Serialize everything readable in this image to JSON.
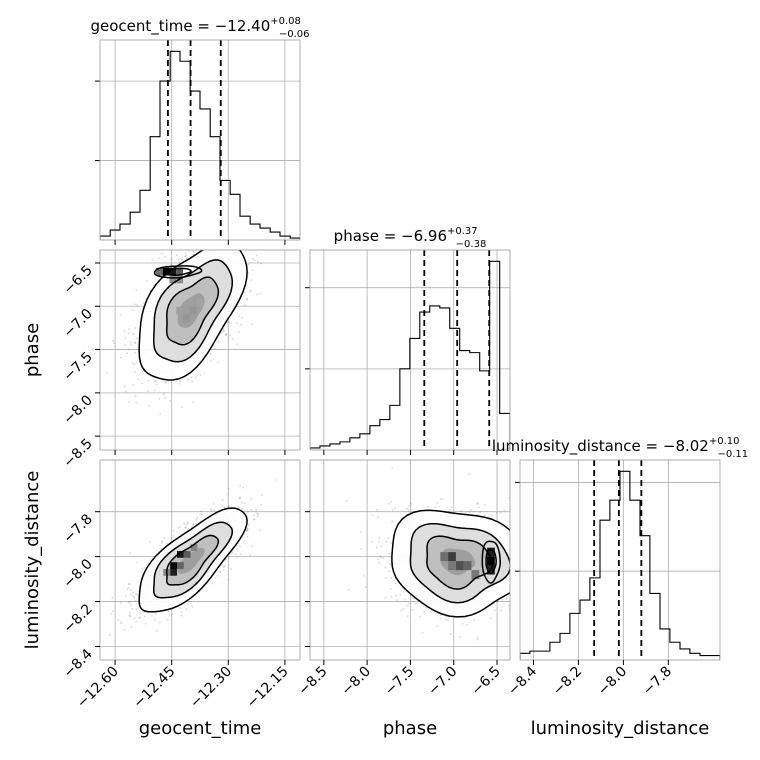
{
  "chart_data": {
    "type": "corner",
    "grid": true,
    "parameters": [
      "geocent_time",
      "phase",
      "luminosity_distance"
    ],
    "axis_labels": {
      "geocent_time": "geocent_time",
      "phase": "phase",
      "luminosity_distance": "luminosity_distance"
    },
    "ranges": {
      "geocent_time": [
        -12.64,
        -12.11
      ],
      "phase": [
        -8.66,
        -6.35
      ],
      "luminosity_distance": [
        -8.46,
        -7.57
      ]
    },
    "ticks": {
      "geocent_time": {
        "values": [
          -12.6,
          -12.45,
          -12.3,
          -12.15
        ],
        "labels": [
          "−12.60",
          "−12.45",
          "−12.30",
          "−12.15"
        ]
      },
      "phase": {
        "values": [
          -8.5,
          -8.0,
          -7.5,
          -7.0,
          -6.5
        ],
        "labels": [
          "−8.5",
          "−8.0",
          "−7.5",
          "−7.0",
          "−6.5"
        ]
      },
      "luminosity_distance": {
        "values": [
          -8.4,
          -8.2,
          -8.0,
          -7.8
        ],
        "labels": [
          "−8.4",
          "−8.2",
          "−8.0",
          "−7.8"
        ]
      }
    },
    "titles": {
      "geocent_time": {
        "main": "geocent_time = −12.40",
        "sup": "+0.08",
        "sub": "−0.06"
      },
      "phase": {
        "main": "phase = −6.96",
        "sup": "+0.37",
        "sub": "−0.38"
      },
      "luminosity_distance": {
        "main": "luminosity_distance = −8.02",
        "sup": "+0.10",
        "sub": "−0.11"
      }
    },
    "quantiles": {
      "geocent_time": [
        -12.46,
        -12.4,
        -12.32
      ],
      "phase": [
        -7.34,
        -6.96,
        -6.59
      ],
      "luminosity_distance": [
        -8.13,
        -8.02,
        -7.92
      ]
    },
    "histograms": {
      "geocent_time": {
        "edges": [
          -12.64,
          -12.613,
          -12.587,
          -12.56,
          -12.534,
          -12.507,
          -12.481,
          -12.454,
          -12.428,
          -12.401,
          -12.375,
          -12.348,
          -12.322,
          -12.295,
          -12.269,
          -12.242,
          -12.216,
          -12.189,
          -12.163,
          -12.136,
          -12.11
        ],
        "counts": [
          2,
          5,
          8,
          14,
          25,
          52,
          80,
          95,
          90,
          75,
          66,
          52,
          30,
          23,
          12,
          8,
          6,
          4,
          2,
          1
        ]
      },
      "phase": {
        "edges": [
          -8.66,
          -8.545,
          -8.43,
          -8.314,
          -8.199,
          -8.084,
          -7.968,
          -7.853,
          -7.738,
          -7.622,
          -7.507,
          -7.392,
          -7.277,
          -7.161,
          -7.046,
          -6.931,
          -6.815,
          -6.7,
          -6.585,
          -6.469,
          -6.35
        ],
        "counts": [
          1,
          2,
          3,
          4,
          6,
          8,
          12,
          15,
          22,
          40,
          55,
          68,
          71,
          70,
          60,
          49,
          48,
          39,
          93,
          18
        ]
      },
      "luminosity_distance": {
        "edges": [
          -8.46,
          -8.416,
          -8.371,
          -8.327,
          -8.282,
          -8.238,
          -8.193,
          -8.149,
          -8.104,
          -8.06,
          -8.015,
          -7.971,
          -7.926,
          -7.882,
          -7.837,
          -7.793,
          -7.748,
          -7.704,
          -7.659,
          -7.615,
          -7.57
        ],
        "counts": [
          3,
          4,
          4,
          8,
          12,
          21,
          27,
          37,
          63,
          72,
          85,
          72,
          56,
          30,
          14,
          8,
          5,
          3,
          2,
          2
        ]
      }
    },
    "joint": [
      {
        "x": "geocent_time",
        "y": "phase",
        "mean": [
          -12.4,
          -7.05
        ],
        "std": [
          0.065,
          0.36
        ],
        "correlation": 0.55,
        "secondary_mode": [
          -12.435,
          -6.6
        ],
        "peak_bins": [
          {
            "x": -12.465,
            "y": -6.6,
            "w": 0.018,
            "h": 0.09,
            "level": 1.0
          },
          {
            "x": -12.447,
            "y": -6.6,
            "w": 0.018,
            "h": 0.09,
            "level": 0.9
          },
          {
            "x": -12.429,
            "y": -6.6,
            "w": 0.018,
            "h": 0.09,
            "level": 0.55
          },
          {
            "x": -12.483,
            "y": -6.6,
            "w": 0.018,
            "h": 0.09,
            "level": 0.45
          },
          {
            "x": -12.447,
            "y": -6.69,
            "w": 0.018,
            "h": 0.09,
            "level": 0.3
          },
          {
            "x": -12.429,
            "y": -6.69,
            "w": 0.018,
            "h": 0.09,
            "level": 0.3
          },
          {
            "x": -12.393,
            "y": -7.05,
            "w": 0.018,
            "h": 0.09,
            "level": 0.25
          },
          {
            "x": -12.411,
            "y": -7.14,
            "w": 0.018,
            "h": 0.09,
            "level": 0.25
          },
          {
            "x": -12.429,
            "y": -7.05,
            "w": 0.018,
            "h": 0.09,
            "level": 0.2
          },
          {
            "x": -12.375,
            "y": -6.96,
            "w": 0.018,
            "h": 0.09,
            "level": 0.18
          }
        ]
      },
      {
        "x": "geocent_time",
        "y": "luminosity_distance",
        "mean": [
          -12.4,
          -8.02
        ],
        "std": [
          0.065,
          0.105
        ],
        "correlation": 0.75,
        "peak_bins": [
          {
            "x": -12.445,
            "y": -8.04,
            "w": 0.018,
            "h": 0.03,
            "level": 1.0
          },
          {
            "x": -12.427,
            "y": -7.99,
            "w": 0.018,
            "h": 0.03,
            "level": 0.9
          },
          {
            "x": -12.445,
            "y": -8.07,
            "w": 0.018,
            "h": 0.03,
            "level": 0.85
          },
          {
            "x": -12.409,
            "y": -7.99,
            "w": 0.018,
            "h": 0.03,
            "level": 0.55
          },
          {
            "x": -12.427,
            "y": -8.04,
            "w": 0.018,
            "h": 0.03,
            "level": 0.5
          },
          {
            "x": -12.391,
            "y": -7.96,
            "w": 0.018,
            "h": 0.03,
            "level": 0.35
          },
          {
            "x": -12.463,
            "y": -8.07,
            "w": 0.018,
            "h": 0.03,
            "level": 0.35
          }
        ]
      },
      {
        "x": "phase",
        "y": "luminosity_distance",
        "mean": [
          -6.96,
          -8.02
        ],
        "std": [
          0.36,
          0.105
        ],
        "correlation": -0.1,
        "secondary_mode": [
          -6.57,
          -8.02
        ],
        "peak_bins": [
          {
            "x": -6.57,
            "y": -8.02,
            "w": 0.09,
            "h": 0.04,
            "level": 1.0
          },
          {
            "x": -6.57,
            "y": -7.98,
            "w": 0.09,
            "h": 0.04,
            "level": 0.85
          },
          {
            "x": -6.57,
            "y": -8.06,
            "w": 0.09,
            "h": 0.04,
            "level": 0.8
          },
          {
            "x": -7.02,
            "y": -8.0,
            "w": 0.09,
            "h": 0.04,
            "level": 0.7
          },
          {
            "x": -6.93,
            "y": -8.04,
            "w": 0.09,
            "h": 0.04,
            "level": 0.6
          },
          {
            "x": -6.84,
            "y": -8.04,
            "w": 0.09,
            "h": 0.04,
            "level": 0.5
          },
          {
            "x": -7.11,
            "y": -8.0,
            "w": 0.09,
            "h": 0.04,
            "level": 0.45
          },
          {
            "x": -6.75,
            "y": -8.08,
            "w": 0.09,
            "h": 0.04,
            "level": 0.4
          },
          {
            "x": -7.02,
            "y": -8.04,
            "w": 0.09,
            "h": 0.04,
            "level": 0.4
          }
        ]
      }
    ]
  }
}
